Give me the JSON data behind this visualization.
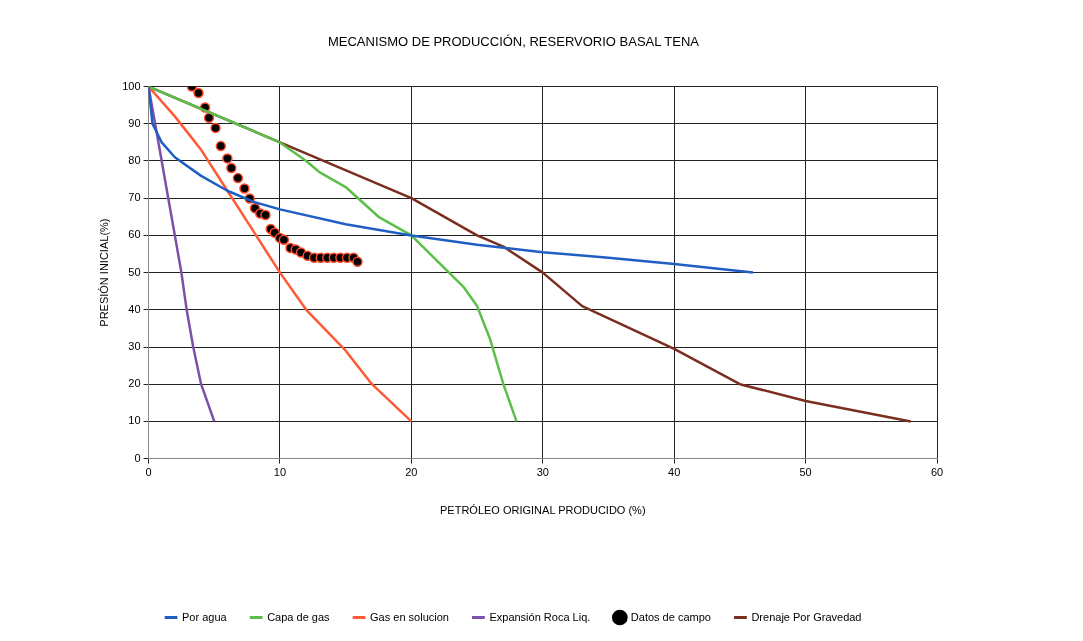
{
  "chart_data": {
    "type": "line",
    "title": "MECANISMO DE PRODUCCIÓN, RESERVORIO BASAL TENA",
    "xlabel": "PETRÓLEO ORIGINAL PRODUCIDO (%)",
    "ylabel": "PRESIÓN INICIAL(%)",
    "xlim": [
      0,
      60
    ],
    "xticks": [
      0,
      10,
      20,
      30,
      40,
      50,
      60
    ],
    "ylim": [
      0,
      100
    ],
    "yticks": [
      0,
      10,
      20,
      30,
      40,
      50,
      60,
      70,
      80,
      90,
      100
    ],
    "grid": true,
    "legend": "bottom",
    "marker": "none",
    "line_style": "solid",
    "series": [
      {
        "name": "Por agua",
        "color": "#1f5fc4",
        "x": [
          0,
          0.3,
          1,
          2,
          4,
          6,
          8,
          10,
          15,
          20,
          25,
          30,
          35,
          40,
          46
        ],
        "values": [
          100,
          90,
          85,
          81,
          76,
          72,
          69,
          67,
          63,
          60,
          57.5,
          55.5,
          54,
          52.3,
          50
        ]
      },
      {
        "name": "Capa de gas",
        "color": "#5cbf4a",
        "x": [
          0,
          10,
          12,
          13,
          15,
          17.5,
          20,
          22,
          24,
          25,
          26,
          27,
          28
        ],
        "values": [
          100,
          85,
          80,
          77,
          73,
          65,
          60,
          53,
          46,
          41,
          32,
          20,
          10
        ]
      },
      {
        "name": "Gas en solucion",
        "color": "#ff5a36",
        "x": [
          0,
          2,
          4,
          6,
          8,
          10,
          12,
          15,
          17,
          20
        ],
        "values": [
          100,
          92,
          83,
          72,
          61,
          50,
          40,
          29,
          20,
          10
        ]
      },
      {
        "name": "Expansión Roca Liq.",
        "color": "#7d4fa8",
        "x": [
          0,
          0.5,
          1,
          1.5,
          2,
          2.5,
          2.9,
          3.4,
          4,
          5
        ],
        "values": [
          100,
          90,
          80,
          70,
          60,
          50,
          40,
          30,
          20,
          10
        ]
      },
      {
        "name": "Datos de campo",
        "type": "scatter",
        "marker": "circle",
        "color": "#000000",
        "x": [
          3.3,
          3.8,
          4.3,
          4.6,
          5.1,
          5.5,
          6,
          6.3,
          6.8,
          7.3,
          7.7,
          8.1,
          8.5,
          8.9,
          9.3,
          9.6,
          10,
          10.3,
          10.8,
          11.2,
          11.6,
          12.1,
          12.6,
          13.1,
          13.6,
          14.1,
          14.6,
          15.1,
          15.6,
          15.9
        ],
        "values": [
          100,
          98.3,
          94.4,
          91.6,
          88.9,
          84,
          80.7,
          78.1,
          75.4,
          72.6,
          69.9,
          67.3,
          65.9,
          65.5,
          61.7,
          60.7,
          59.3,
          58.8,
          56.6,
          56.2,
          55.4,
          54.5,
          54,
          54,
          54,
          54,
          54,
          54,
          54,
          52.9
        ]
      },
      {
        "name": "Drenaje Por Gravedad",
        "color": "#7b2e1e",
        "x": [
          0,
          10,
          20,
          25,
          27,
          30,
          33,
          40,
          45,
          50,
          58
        ],
        "values": [
          100,
          85,
          70,
          60,
          57,
          50,
          41,
          29.5,
          20,
          15.5,
          10
        ]
      }
    ]
  }
}
